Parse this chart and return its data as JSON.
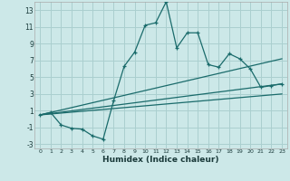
{
  "title": "",
  "xlabel": "Humidex (Indice chaleur)",
  "ylabel": "",
  "bg_color": "#cce8e8",
  "grid_color": "#aacfcf",
  "line_color": "#1a6b6b",
  "xlim": [
    -0.5,
    23.5
  ],
  "ylim": [
    -3.5,
    14.0
  ],
  "xticks": [
    0,
    1,
    2,
    3,
    4,
    5,
    6,
    7,
    8,
    9,
    10,
    11,
    12,
    13,
    14,
    15,
    16,
    17,
    18,
    19,
    20,
    21,
    22,
    23
  ],
  "yticks": [
    -3,
    -1,
    1,
    3,
    5,
    7,
    9,
    11,
    13
  ],
  "main_x": [
    0,
    1,
    2,
    3,
    4,
    5,
    6,
    7,
    8,
    9,
    10,
    11,
    12,
    13,
    14,
    15,
    16,
    17,
    18,
    19,
    20,
    21,
    22,
    23
  ],
  "main_y": [
    0.5,
    0.8,
    -0.7,
    -1.1,
    -1.2,
    -2.0,
    -2.4,
    2.2,
    6.3,
    8.0,
    11.2,
    11.5,
    14.0,
    8.5,
    10.3,
    10.3,
    6.5,
    6.2,
    7.8,
    7.2,
    6.0,
    3.8,
    4.0,
    4.2
  ],
  "line1_x": [
    0,
    23
  ],
  "line1_y": [
    0.5,
    4.2
  ],
  "line2_x": [
    0,
    23
  ],
  "line2_y": [
    0.5,
    3.0
  ],
  "line3_x": [
    0,
    23
  ],
  "line3_y": [
    0.5,
    7.2
  ]
}
